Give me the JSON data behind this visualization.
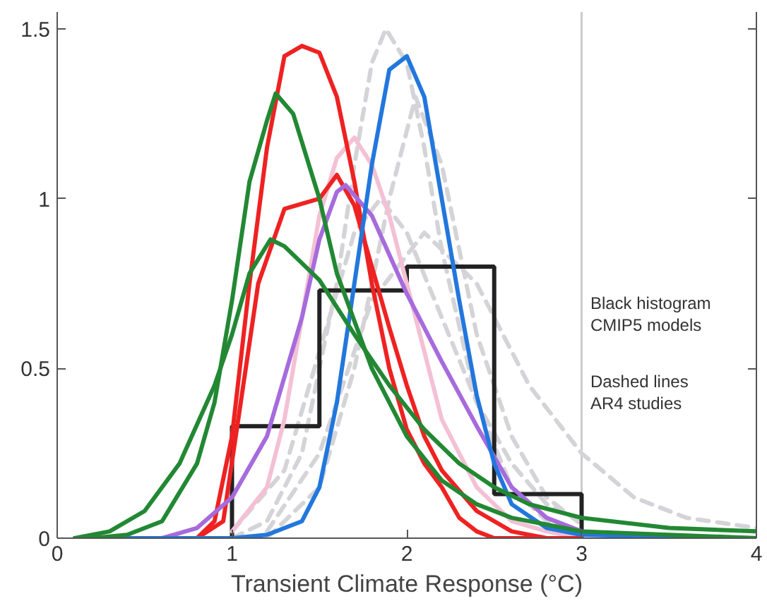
{
  "chart_data": {
    "type": "histogram",
    "xlabel": "Transient Climate Response (°C)",
    "bins": [
      1,
      1.5,
      2,
      2.5,
      3
    ],
    "values": [
      0.33,
      0.73,
      0.8,
      0.13
    ],
    "color": "#222222",
    "xlim": [
      0,
      4
    ],
    "ylim": [
      0,
      1.55
    ],
    "xticks": [
      0,
      1,
      2,
      3,
      4
    ],
    "yticks": [
      0,
      0.5,
      1,
      1.5
    ],
    "grid": false,
    "ref_lines": [
      {
        "axis": "x",
        "value": 3,
        "color": "#cccccc"
      }
    ],
    "annotations": [
      "Black histogram\nCMIP5 models",
      "Dashed lines\nAR4 studies"
    ],
    "series": [
      {
        "type": "line",
        "color": "#d4d4d8",
        "line_style": "dashed",
        "x": [
          1.0,
          1.2,
          1.4,
          1.6,
          1.7,
          1.8,
          1.88,
          2.0,
          2.1,
          2.2,
          2.4,
          2.6,
          2.8,
          3.0
        ],
        "values": [
          0,
          0.05,
          0.25,
          0.75,
          1.1,
          1.4,
          1.5,
          1.4,
          1.15,
          0.85,
          0.4,
          0.15,
          0.05,
          0.01
        ]
      },
      {
        "type": "line",
        "color": "#d4d4d8",
        "line_style": "dashed",
        "x": [
          1.2,
          1.5,
          1.7,
          1.9,
          2.05,
          2.2,
          2.4,
          2.6,
          2.8,
          3.0
        ],
        "values": [
          0,
          0.15,
          0.5,
          1.0,
          1.3,
          1.1,
          0.6,
          0.3,
          0.12,
          0.04
        ]
      },
      {
        "type": "line",
        "color": "#d4d4d8",
        "line_style": "dashed",
        "x": [
          1.0,
          1.3,
          1.5,
          1.7,
          1.85,
          2.0,
          2.2,
          2.4,
          2.6,
          2.8,
          3.0
        ],
        "values": [
          0.02,
          0.2,
          0.55,
          0.9,
          1.0,
          0.9,
          0.65,
          0.4,
          0.22,
          0.1,
          0.05
        ]
      },
      {
        "type": "line",
        "color": "#d4d4d8",
        "line_style": "dashed",
        "x": [
          1.2,
          1.5,
          1.8,
          2.1,
          2.4,
          2.7,
          3.0,
          3.3,
          3.6,
          4.0
        ],
        "values": [
          0.02,
          0.25,
          0.7,
          0.9,
          0.75,
          0.45,
          0.25,
          0.12,
          0.06,
          0.03
        ]
      },
      {
        "type": "line",
        "color": "#f4c0d4",
        "x": [
          1.0,
          1.2,
          1.3,
          1.4,
          1.5,
          1.6,
          1.7,
          1.8,
          1.9,
          2.0,
          2.1,
          2.2,
          2.4,
          2.6,
          2.8,
          3.0
        ],
        "values": [
          0.02,
          0.15,
          0.35,
          0.65,
          0.95,
          1.12,
          1.18,
          1.1,
          0.95,
          0.75,
          0.55,
          0.35,
          0.15,
          0.05,
          0.02,
          0
        ]
      },
      {
        "type": "line",
        "color": "#ee2222",
        "x": [
          0.8,
          0.9,
          1.0,
          1.1,
          1.2,
          1.3,
          1.4,
          1.5,
          1.6,
          1.7,
          1.8,
          1.9,
          2.0,
          2.1,
          2.2,
          2.3,
          2.4,
          2.5,
          3.0
        ],
        "values": [
          0,
          0.05,
          0.3,
          0.75,
          1.15,
          1.42,
          1.45,
          1.43,
          1.3,
          1.05,
          0.75,
          0.5,
          0.32,
          0.22,
          0.15,
          0.06,
          0.02,
          0,
          0
        ]
      },
      {
        "type": "line",
        "color": "#ee2222",
        "x": [
          0.8,
          0.95,
          1.05,
          1.15,
          1.3,
          1.5,
          1.6,
          1.7,
          1.8,
          1.9,
          2.0,
          2.1,
          2.2,
          2.4,
          2.6,
          2.8,
          3.0
        ],
        "values": [
          0,
          0.05,
          0.4,
          0.75,
          0.97,
          1.0,
          1.07,
          0.98,
          0.8,
          0.62,
          0.45,
          0.3,
          0.2,
          0.08,
          0.02,
          0,
          0
        ]
      },
      {
        "type": "line",
        "color": "#a66bdc",
        "x": [
          0.6,
          0.8,
          1.0,
          1.2,
          1.4,
          1.5,
          1.6,
          1.65,
          1.8,
          2.0,
          2.2,
          2.4,
          2.6,
          2.8,
          3.0,
          3.5
        ],
        "values": [
          0,
          0.03,
          0.12,
          0.3,
          0.65,
          0.88,
          1.02,
          1.04,
          0.95,
          0.72,
          0.52,
          0.33,
          0.15,
          0.06,
          0.02,
          0
        ]
      },
      {
        "type": "line",
        "color": "#2277dd",
        "x": [
          0.1,
          1.0,
          1.2,
          1.4,
          1.5,
          1.6,
          1.7,
          1.8,
          1.9,
          2.0,
          2.1,
          2.2,
          2.3,
          2.4,
          2.5,
          2.6,
          2.8,
          3.0,
          4.0
        ],
        "values": [
          0,
          0,
          0.01,
          0.05,
          0.15,
          0.4,
          0.75,
          1.1,
          1.38,
          1.42,
          1.3,
          1.0,
          0.7,
          0.42,
          0.22,
          0.1,
          0.03,
          0.01,
          0
        ]
      },
      {
        "type": "line",
        "color": "#228833",
        "x": [
          0.2,
          0.4,
          0.6,
          0.8,
          0.9,
          1.0,
          1.1,
          1.2,
          1.25,
          1.35,
          1.5,
          1.6,
          1.8,
          2.0,
          2.2,
          2.4,
          2.6,
          3.0,
          3.5,
          4.0
        ],
        "values": [
          0,
          0.01,
          0.05,
          0.22,
          0.4,
          0.7,
          1.05,
          1.23,
          1.31,
          1.25,
          1.0,
          0.78,
          0.5,
          0.3,
          0.17,
          0.1,
          0.06,
          0.02,
          0.01,
          0
        ]
      },
      {
        "type": "line",
        "color": "#228833",
        "x": [
          0.1,
          0.3,
          0.5,
          0.7,
          0.9,
          1.0,
          1.1,
          1.22,
          1.3,
          1.5,
          1.7,
          1.9,
          2.1,
          2.3,
          2.5,
          2.7,
          3.0,
          3.5,
          4.0
        ],
        "values": [
          0,
          0.02,
          0.08,
          0.22,
          0.45,
          0.6,
          0.78,
          0.88,
          0.86,
          0.76,
          0.6,
          0.45,
          0.32,
          0.22,
          0.15,
          0.1,
          0.06,
          0.03,
          0.02
        ]
      }
    ]
  }
}
